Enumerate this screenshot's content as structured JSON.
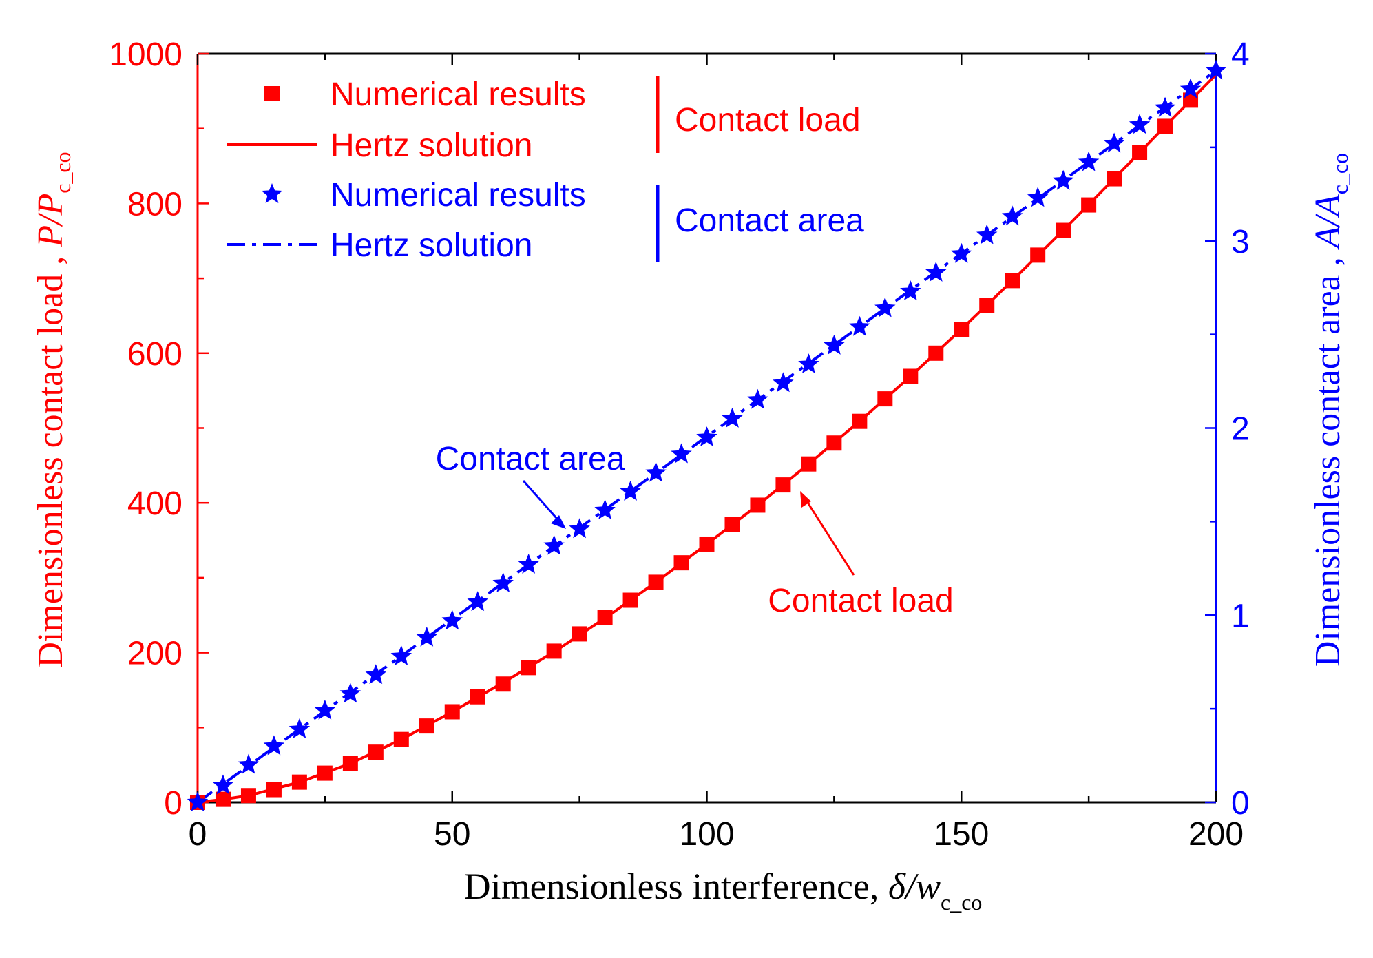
{
  "chart_data": {
    "type": "scatter",
    "x": {
      "label_prefix": "Dimensionless interference, ",
      "label_symbol": "δ/w",
      "label_sub": "c_co",
      "lim": [
        0,
        200
      ],
      "ticks": [
        "0",
        "50",
        "100",
        "150",
        "200"
      ]
    },
    "y_left": {
      "label_prefix": "Dimensionless contact load , ",
      "label_symbol": "P/P",
      "label_sub": "c_co",
      "lim": [
        0,
        1000
      ],
      "ticks": [
        "0",
        "200",
        "400",
        "600",
        "800",
        "1000"
      ],
      "color": "#ff0000"
    },
    "y_right": {
      "label_prefix": "Dimensionless contact area , ",
      "label_symbol": "A/A",
      "label_sub": "c_co",
      "lim": [
        0,
        4
      ],
      "ticks": [
        "0",
        "1",
        "2",
        "3",
        "4"
      ],
      "color": "#0000ff"
    },
    "legend": {
      "placement": "top-left",
      "entries": [
        {
          "label": "Numerical results",
          "marker": "square",
          "color": "#ff0000"
        },
        {
          "label": "Hertz solution",
          "line": "solid",
          "color": "#ff0000"
        },
        {
          "label": "Numerical results",
          "marker": "star",
          "color": "#0000ff"
        },
        {
          "label": "Hertz solution",
          "line": "dash-dot",
          "color": "#0000ff"
        }
      ],
      "group_labels": [
        {
          "label": "Contact load",
          "color": "#ff0000"
        },
        {
          "label": "Contact area",
          "color": "#0000ff"
        }
      ]
    },
    "annotations": [
      {
        "text": "Contact area",
        "color": "#0000ff",
        "points_to_x": 73
      },
      {
        "text": "Contact load",
        "color": "#ff0000",
        "points_to_x": 117
      }
    ],
    "series": [
      {
        "name": "Numerical results",
        "group": "Contact load",
        "axis": "left",
        "marker": "square",
        "color": "#ff0000",
        "x": [
          0,
          5,
          10,
          15,
          20,
          25,
          30,
          35,
          40,
          45,
          50,
          55,
          60,
          65,
          70,
          75,
          80,
          85,
          90,
          95,
          100,
          105,
          110,
          115,
          120,
          125,
          130,
          135,
          140,
          145,
          150,
          155,
          160,
          165,
          170,
          175,
          180,
          185,
          190,
          195
        ],
        "y": [
          0,
          4,
          9,
          17,
          27,
          39,
          52,
          67,
          84,
          102,
          121,
          141,
          158,
          180,
          202,
          225,
          247,
          270,
          294,
          320,
          345,
          371,
          397,
          424,
          452,
          480,
          509,
          539,
          569,
          600,
          632,
          664,
          697,
          731,
          764,
          798,
          833,
          868,
          903,
          938
        ]
      },
      {
        "name": "Hertz solution",
        "group": "Contact load",
        "axis": "left",
        "line": "solid",
        "color": "#ff0000",
        "x": [
          0,
          5,
          10,
          20,
          30,
          40,
          50,
          60,
          70,
          80,
          90,
          100,
          110,
          120,
          130,
          140,
          150,
          160,
          170,
          180,
          190,
          200
        ],
        "y": [
          0,
          4,
          9,
          27,
          52,
          84,
          121,
          160,
          201,
          246,
          294,
          345,
          397,
          452,
          509,
          569,
          632,
          697,
          764,
          833,
          903,
          972
        ]
      },
      {
        "name": "Numerical results",
        "group": "Contact area",
        "axis": "right",
        "marker": "star",
        "color": "#0000ff",
        "x": [
          0,
          5,
          10,
          15,
          20,
          25,
          30,
          35,
          40,
          45,
          50,
          55,
          60,
          65,
          70,
          75,
          80,
          85,
          90,
          95,
          100,
          105,
          110,
          115,
          120,
          125,
          130,
          135,
          140,
          145,
          150,
          155,
          160,
          165,
          170,
          175,
          180,
          185,
          190,
          195,
          200
        ],
        "y": [
          0,
          0.09,
          0.2,
          0.3,
          0.39,
          0.49,
          0.58,
          0.68,
          0.78,
          0.88,
          0.97,
          1.07,
          1.17,
          1.27,
          1.37,
          1.46,
          1.56,
          1.66,
          1.76,
          1.86,
          1.95,
          2.05,
          2.15,
          2.24,
          2.34,
          2.44,
          2.54,
          2.64,
          2.73,
          2.83,
          2.93,
          3.03,
          3.13,
          3.23,
          3.32,
          3.42,
          3.52,
          3.62,
          3.71,
          3.81,
          3.91
        ]
      },
      {
        "name": "Hertz solution",
        "group": "Contact area",
        "axis": "right",
        "line": "dash-dot",
        "color": "#0000ff",
        "x": [
          0,
          200
        ],
        "y": [
          0,
          3.91
        ]
      }
    ]
  }
}
